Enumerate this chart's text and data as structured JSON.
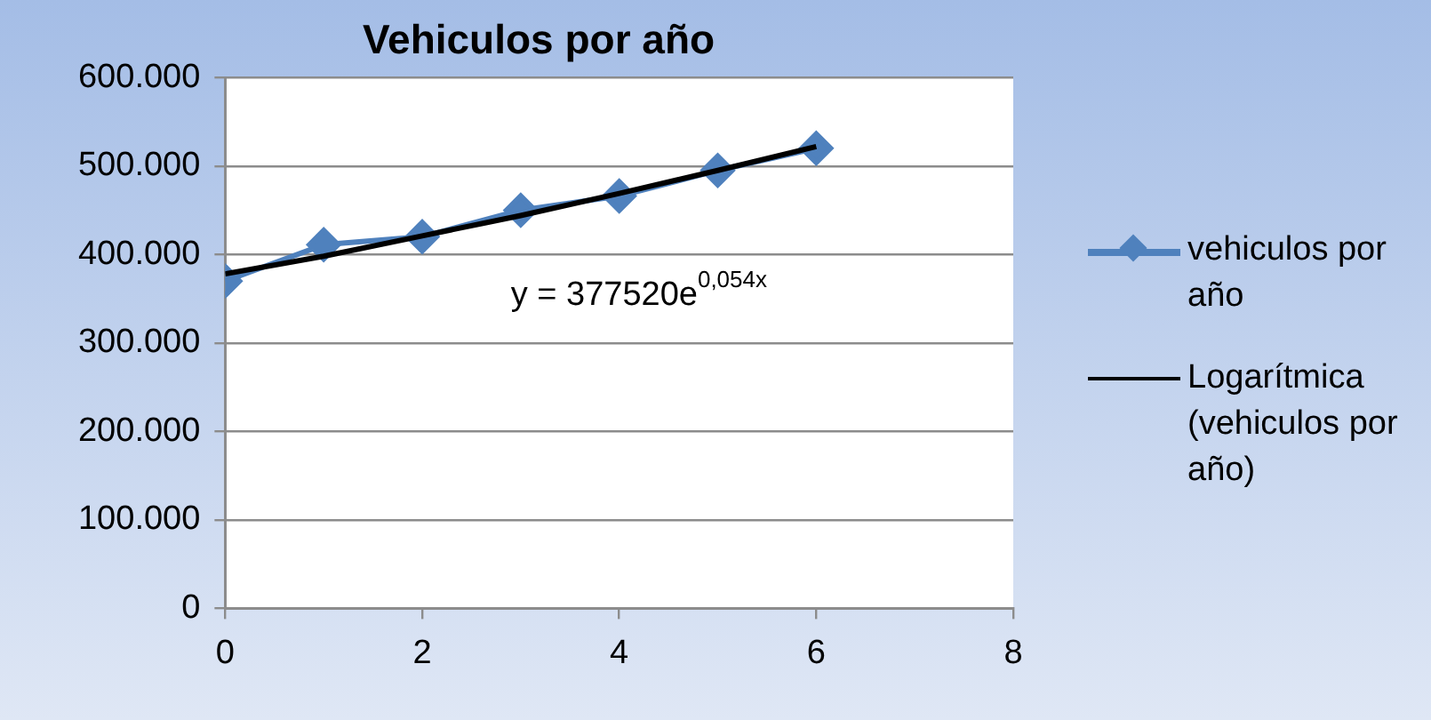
{
  "chart_data": {
    "type": "line",
    "title": "Vehiculos por año",
    "x": [
      0,
      1,
      2,
      3,
      4,
      5,
      6
    ],
    "series": [
      {
        "name": "vehiculos por año",
        "color": "#4f81bd",
        "values": [
          370000,
          411000,
          420000,
          450000,
          466000,
          495000,
          520000
        ],
        "marker": "diamond"
      },
      {
        "name": "Logarítmica (vehiculos por año)",
        "color": "#000000",
        "x": [
          0,
          1,
          2,
          3,
          4,
          5,
          6
        ],
        "values": [
          378000,
          398000,
          421000,
          444000,
          469000,
          495000,
          522000
        ],
        "marker": "none"
      }
    ],
    "xlim": [
      0,
      8
    ],
    "xticks": [
      0,
      2,
      4,
      6,
      8
    ],
    "ylim": [
      0,
      600000
    ],
    "yticks": [
      {
        "value": 0,
        "label": "0"
      },
      {
        "value": 100000,
        "label": "100.000"
      },
      {
        "value": 200000,
        "label": "200.000"
      },
      {
        "value": 300000,
        "label": "300.000"
      },
      {
        "value": 400000,
        "label": "400.000"
      },
      {
        "value": 500000,
        "label": "500.000"
      },
      {
        "value": 600000,
        "label": "600.000"
      }
    ],
    "grid": "y",
    "legend": "right",
    "annotations": [
      "y = 377520e$^{0,054x}$"
    ]
  }
}
